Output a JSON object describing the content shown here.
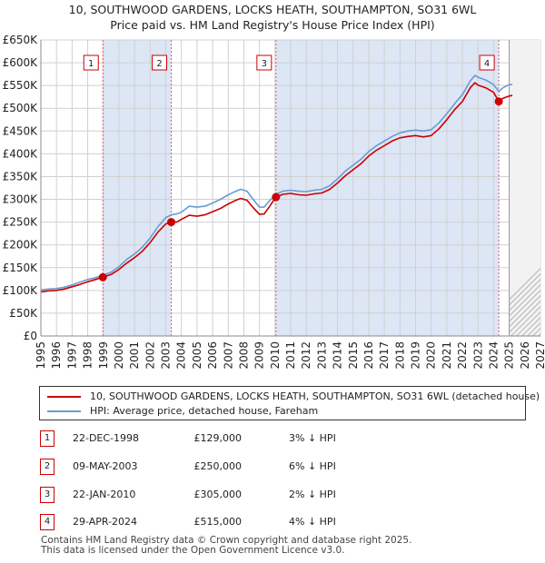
{
  "title_line1": "10, SOUTHWOOD GARDENS, LOCKS HEATH, SOUTHAMPTON, SO31 6WL",
  "title_line2": "Price paid vs. HM Land Registry's House Price Index (HPI)",
  "colors": {
    "price_line": "#cc0000",
    "hpi_line": "#6a9bd1",
    "shade": "#dde6f5",
    "grid": "#d0d0d0",
    "marker_border": "#cc0000",
    "sale_dashed": "#e06060"
  },
  "legend": {
    "price_label": "10, SOUTHWOOD GARDENS, LOCKS HEATH, SOUTHAMPTON, SO31 6WL (detached house)",
    "hpi_label": "HPI: Average price, detached house, Fareham"
  },
  "sales": [
    {
      "id": "1",
      "date": "22-DEC-1998",
      "price": "£129,000",
      "hpi_note": "3% ↓ HPI"
    },
    {
      "id": "2",
      "date": "09-MAY-2003",
      "price": "£250,000",
      "hpi_note": "6% ↓ HPI"
    },
    {
      "id": "3",
      "date": "22-JAN-2010",
      "price": "£305,000",
      "hpi_note": "2% ↓ HPI"
    },
    {
      "id": "4",
      "date": "29-APR-2024",
      "price": "£515,000",
      "hpi_note": "4% ↓ HPI"
    }
  ],
  "footer_line1": "Contains HM Land Registry data © Crown copyright and database right 2025.",
  "footer_line2": "This data is licensed under the Open Government Licence v3.0.",
  "chart_data": {
    "type": "line",
    "title": "10, SOUTHWOOD GARDENS, LOCKS HEATH, SOUTHAMPTON, SO31 6WL — Price paid vs. HM Land Registry's House Price Index (HPI)",
    "xlabel": "",
    "ylabel": "",
    "xlim": [
      1995,
      2027
    ],
    "ylim": [
      0,
      650000
    ],
    "y_ticks": [
      0,
      50000,
      100000,
      150000,
      200000,
      250000,
      300000,
      350000,
      400000,
      450000,
      500000,
      550000,
      600000,
      650000
    ],
    "y_tick_labels": [
      "£0",
      "£50K",
      "£100K",
      "£150K",
      "£200K",
      "£250K",
      "£300K",
      "£350K",
      "£400K",
      "£450K",
      "£500K",
      "£550K",
      "£600K",
      "£650K"
    ],
    "x_ticks": [
      1995,
      1996,
      1997,
      1998,
      1999,
      2000,
      2001,
      2002,
      2003,
      2004,
      2005,
      2006,
      2007,
      2008,
      2009,
      2010,
      2011,
      2012,
      2013,
      2014,
      2015,
      2016,
      2017,
      2018,
      2019,
      2020,
      2021,
      2022,
      2023,
      2024,
      2025,
      2026,
      2027
    ],
    "x_tick_labels": [
      "1995",
      "1996",
      "1997",
      "1998",
      "1999",
      "2000",
      "2001",
      "2002",
      "2003",
      "2004",
      "2005",
      "2006",
      "2007",
      "2008",
      "2009",
      "2010",
      "2011",
      "2012",
      "2013",
      "2014",
      "2015",
      "2016",
      "2017",
      "2018",
      "2019",
      "2020",
      "2021",
      "2022",
      "2023",
      "2024",
      "2025",
      "2026",
      "2027"
    ],
    "shaded_periods": [
      [
        1998.97,
        2003.35
      ],
      [
        2010.06,
        2024.33
      ]
    ],
    "forecast_hatch_from": 2025.0,
    "series": [
      {
        "name": "HPI: Average price, detached house, Fareham",
        "points": [
          [
            1995.0,
            101000
          ],
          [
            1995.5,
            103000
          ],
          [
            1996.0,
            104000
          ],
          [
            1996.5,
            107000
          ],
          [
            1997.0,
            112000
          ],
          [
            1997.5,
            118000
          ],
          [
            1998.0,
            124000
          ],
          [
            1998.5,
            128000
          ],
          [
            1998.97,
            133000
          ],
          [
            1999.5,
            140000
          ],
          [
            2000.0,
            152000
          ],
          [
            2000.5,
            168000
          ],
          [
            2001.0,
            180000
          ],
          [
            2001.5,
            195000
          ],
          [
            2002.0,
            215000
          ],
          [
            2002.5,
            240000
          ],
          [
            2003.0,
            260000
          ],
          [
            2003.35,
            266000
          ],
          [
            2003.7,
            268000
          ],
          [
            2004.0,
            272000
          ],
          [
            2004.5,
            285000
          ],
          [
            2005.0,
            283000
          ],
          [
            2005.5,
            285000
          ],
          [
            2006.0,
            292000
          ],
          [
            2006.5,
            300000
          ],
          [
            2007.0,
            310000
          ],
          [
            2007.5,
            318000
          ],
          [
            2007.8,
            322000
          ],
          [
            2008.2,
            318000
          ],
          [
            2008.6,
            300000
          ],
          [
            2009.0,
            283000
          ],
          [
            2009.3,
            283000
          ],
          [
            2009.6,
            295000
          ],
          [
            2010.06,
            311000
          ],
          [
            2010.5,
            318000
          ],
          [
            2011.0,
            320000
          ],
          [
            2011.5,
            318000
          ],
          [
            2012.0,
            317000
          ],
          [
            2012.5,
            320000
          ],
          [
            2013.0,
            322000
          ],
          [
            2013.5,
            330000
          ],
          [
            2014.0,
            345000
          ],
          [
            2014.5,
            362000
          ],
          [
            2015.0,
            375000
          ],
          [
            2015.5,
            388000
          ],
          [
            2016.0,
            405000
          ],
          [
            2016.5,
            418000
          ],
          [
            2017.0,
            428000
          ],
          [
            2017.5,
            438000
          ],
          [
            2018.0,
            446000
          ],
          [
            2018.5,
            450000
          ],
          [
            2019.0,
            452000
          ],
          [
            2019.5,
            450000
          ],
          [
            2020.0,
            453000
          ],
          [
            2020.5,
            468000
          ],
          [
            2021.0,
            488000
          ],
          [
            2021.5,
            510000
          ],
          [
            2022.0,
            530000
          ],
          [
            2022.5,
            560000
          ],
          [
            2022.8,
            572000
          ],
          [
            2023.0,
            568000
          ],
          [
            2023.5,
            562000
          ],
          [
            2024.0,
            552000
          ],
          [
            2024.33,
            537000
          ],
          [
            2024.6,
            545000
          ],
          [
            2025.0,
            552000
          ],
          [
            2025.2,
            552000
          ]
        ]
      },
      {
        "name": "10, SOUTHWOOD GARDENS, LOCKS HEATH, SOUTHAMPTON, SO31 6WL (detached house)",
        "points": [
          [
            1995.0,
            97000
          ],
          [
            1995.5,
            99000
          ],
          [
            1996.0,
            100000
          ],
          [
            1996.5,
            103000
          ],
          [
            1997.0,
            108000
          ],
          [
            1997.5,
            113000
          ],
          [
            1998.0,
            119000
          ],
          [
            1998.5,
            124000
          ],
          [
            1998.97,
            129000
          ],
          [
            1999.5,
            135000
          ],
          [
            2000.0,
            146000
          ],
          [
            2000.5,
            160000
          ],
          [
            2001.0,
            172000
          ],
          [
            2001.5,
            186000
          ],
          [
            2002.0,
            205000
          ],
          [
            2002.5,
            228000
          ],
          [
            2003.0,
            246000
          ],
          [
            2003.35,
            250000
          ],
          [
            2003.7,
            250000
          ],
          [
            2004.0,
            256000
          ],
          [
            2004.5,
            265000
          ],
          [
            2005.0,
            263000
          ],
          [
            2005.5,
            266000
          ],
          [
            2006.0,
            273000
          ],
          [
            2006.5,
            280000
          ],
          [
            2007.0,
            290000
          ],
          [
            2007.5,
            298000
          ],
          [
            2007.8,
            302000
          ],
          [
            2008.2,
            298000
          ],
          [
            2008.6,
            282000
          ],
          [
            2009.0,
            267000
          ],
          [
            2009.3,
            268000
          ],
          [
            2009.6,
            282000
          ],
          [
            2010.06,
            305000
          ],
          [
            2010.5,
            311000
          ],
          [
            2011.0,
            313000
          ],
          [
            2011.5,
            310000
          ],
          [
            2012.0,
            309000
          ],
          [
            2012.5,
            312000
          ],
          [
            2013.0,
            314000
          ],
          [
            2013.5,
            322000
          ],
          [
            2014.0,
            336000
          ],
          [
            2014.5,
            352000
          ],
          [
            2015.0,
            365000
          ],
          [
            2015.5,
            378000
          ],
          [
            2016.0,
            395000
          ],
          [
            2016.5,
            408000
          ],
          [
            2017.0,
            418000
          ],
          [
            2017.5,
            428000
          ],
          [
            2018.0,
            435000
          ],
          [
            2018.5,
            438000
          ],
          [
            2019.0,
            440000
          ],
          [
            2019.5,
            437000
          ],
          [
            2020.0,
            440000
          ],
          [
            2020.5,
            455000
          ],
          [
            2021.0,
            475000
          ],
          [
            2021.5,
            497000
          ],
          [
            2022.0,
            515000
          ],
          [
            2022.5,
            545000
          ],
          [
            2022.8,
            556000
          ],
          [
            2023.0,
            551000
          ],
          [
            2023.5,
            545000
          ],
          [
            2024.0,
            535000
          ],
          [
            2024.33,
            515000
          ],
          [
            2024.6,
            522000
          ],
          [
            2025.0,
            527000
          ],
          [
            2025.2,
            528000
          ]
        ]
      }
    ],
    "sale_markers": [
      {
        "label": "1",
        "year": 1998.97,
        "value": 129000
      },
      {
        "label": "2",
        "year": 2003.35,
        "value": 250000
      },
      {
        "label": "3",
        "year": 2010.06,
        "value": 305000
      },
      {
        "label": "4",
        "year": 2024.33,
        "value": 515000
      }
    ]
  }
}
